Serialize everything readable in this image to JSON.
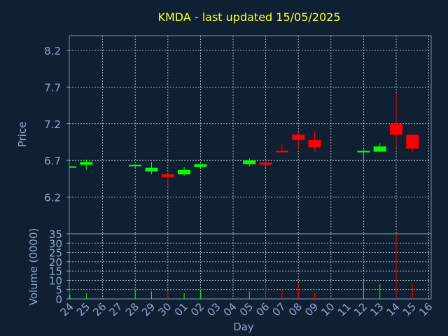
{
  "chart_data": {
    "type": "candlestick",
    "title": "KMDA - last updated 15/05/2025",
    "xlabel": "Day",
    "ylabel": "Price",
    "categories": [
      "24",
      "25",
      "26",
      "27",
      "28",
      "29",
      "30",
      "01",
      "02",
      "03",
      "04",
      "05",
      "06",
      "07",
      "08",
      "09",
      "10",
      "11",
      "12",
      "13",
      "14",
      "15",
      "16"
    ],
    "open": [
      6.6,
      6.64,
      null,
      null,
      6.63,
      6.55,
      6.51,
      6.51,
      6.61,
      null,
      null,
      6.65,
      6.67,
      6.83,
      7.05,
      6.98,
      null,
      null,
      6.81,
      6.82,
      7.2,
      7.05,
      null
    ],
    "high": [
      6.62,
      6.71,
      null,
      null,
      6.65,
      6.68,
      6.52,
      6.61,
      6.66,
      null,
      null,
      6.73,
      6.7,
      6.93,
      7.08,
      7.1,
      null,
      null,
      6.85,
      6.94,
      7.62,
      7.05,
      null
    ],
    "low": [
      6.6,
      6.57,
      null,
      null,
      6.6,
      6.51,
      6.33,
      6.49,
      6.6,
      null,
      null,
      6.62,
      6.61,
      6.81,
      6.86,
      6.82,
      null,
      null,
      6.68,
      6.82,
      6.87,
      6.82,
      null
    ],
    "close": [
      6.62,
      6.68,
      null,
      null,
      6.64,
      6.6,
      6.47,
      6.57,
      6.65,
      null,
      null,
      6.7,
      6.64,
      6.81,
      6.98,
      6.88,
      null,
      null,
      6.83,
      6.89,
      7.05,
      6.86,
      null
    ],
    "ylim": [
      5.7,
      8.4
    ],
    "yticks": [
      6.2,
      6.7,
      7.2,
      7.7,
      8.2
    ],
    "grid": true,
    "up_color": "#00ff00",
    "down_color": "#ff0000",
    "volume": {
      "ylabel": "Volume (0000)",
      "values": [
        2,
        3,
        null,
        null,
        5,
        4,
        4,
        3,
        5,
        null,
        null,
        4,
        8,
        5,
        8,
        3,
        null,
        null,
        10,
        8,
        35,
        8,
        null
      ],
      "ylim": [
        0,
        35
      ],
      "yticks": [
        0,
        5,
        10,
        15,
        20,
        25,
        30,
        35
      ]
    }
  }
}
